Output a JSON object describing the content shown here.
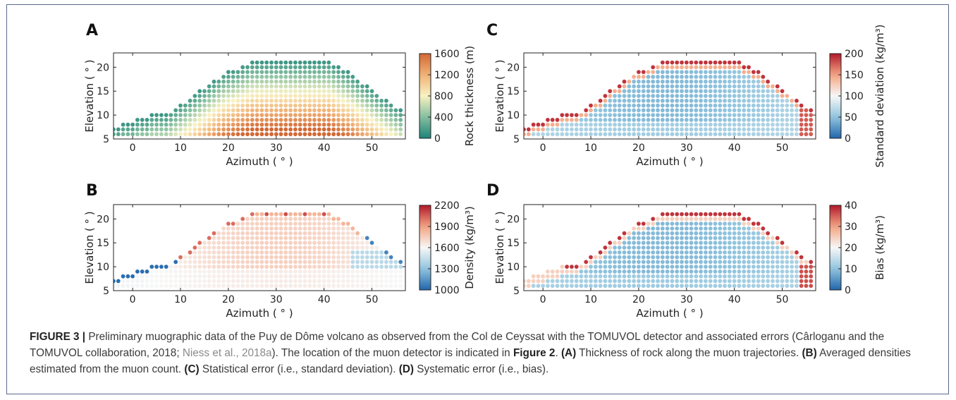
{
  "panels": [
    {
      "letter": "A",
      "xlabel": "Azimuth ( ° )",
      "ylabel": "Elevation ( ° )",
      "xticks": [
        0,
        10,
        20,
        30,
        40,
        50
      ],
      "yticks": [
        5,
        10,
        15,
        20
      ],
      "colorbar": {
        "label": "Rock thickness (m)",
        "ticks": [
          "1600",
          "1200",
          "800",
          "400",
          "0"
        ],
        "colormap": "diverging-green-orange"
      }
    },
    {
      "letter": "C",
      "xlabel": "Azimuth ( ° )",
      "ylabel": "Elevation ( ° )",
      "xticks": [
        0,
        10,
        20,
        30,
        40,
        50
      ],
      "yticks": [
        5,
        10,
        15,
        20
      ],
      "colorbar": {
        "label": "Standard deviation (kg/m³)",
        "ticks": [
          "200",
          "150",
          "100",
          "50",
          "0"
        ],
        "colormap": "RdBu-reversed"
      }
    },
    {
      "letter": "B",
      "xlabel": "Azimuth ( ° )",
      "ylabel": "Elevation ( ° )",
      "xticks": [
        0,
        10,
        20,
        30,
        40,
        50
      ],
      "yticks": [
        5,
        10,
        15,
        20
      ],
      "colorbar": {
        "label": "Density (kg/m³)",
        "ticks": [
          "2200",
          "1900",
          "1600",
          "1300",
          "1000"
        ],
        "colormap": "RdBu-reversed"
      }
    },
    {
      "letter": "D",
      "xlabel": "Azimuth ( ° )",
      "ylabel": "Elevation ( ° )",
      "xticks": [
        0,
        10,
        20,
        30,
        40,
        50
      ],
      "yticks": [
        5,
        10,
        15,
        20
      ],
      "colorbar": {
        "label": "Bias (kg/m³)",
        "ticks": [
          "40",
          "30",
          "20",
          "10",
          "0"
        ],
        "colormap": "RdBu-reversed"
      }
    }
  ],
  "caption": {
    "label": "FIGURE 3 |",
    "text_1": " Preliminary muographic data of the Puy de Dôme volcano as observed from the Col de Ceyssat with the TOMUVOL detector and associated errors (Cârloganu and the TOMUVOL collaboration, 2018; ",
    "citation": "Niess et al., 2018a",
    "text_2": "). The location of the muon detector is indicated in ",
    "figure_ref": "Figure 2",
    "text_3": ". ",
    "a_label": "(A)",
    "a_text": " Thickness of rock along the muon trajectories. ",
    "b_label": "(B)",
    "b_text": " Averaged densities estimated from the muon count. ",
    "c_label": "(C)",
    "c_text": " Statistical error (i.e., standard deviation). ",
    "d_label": "(D)",
    "d_text": " Systematic error (i.e., bias)."
  },
  "chart_data": [
    {
      "panel": "A",
      "type": "scatter",
      "xlim": [
        -4,
        57
      ],
      "ylim": [
        5,
        23
      ],
      "colorbar_range": [
        0,
        1600
      ]
    },
    {
      "panel": "C",
      "type": "scatter",
      "xlim": [
        -4,
        57
      ],
      "ylim": [
        5,
        23
      ],
      "colorbar_range": [
        0,
        200
      ]
    },
    {
      "panel": "B",
      "type": "scatter",
      "xlim": [
        -4,
        57
      ],
      "ylim": [
        5,
        23
      ],
      "colorbar_range": [
        1000,
        2200
      ]
    },
    {
      "panel": "D",
      "type": "scatter",
      "xlim": [
        -4,
        57
      ],
      "ylim": [
        5,
        23
      ],
      "colorbar_range": [
        0,
        40
      ]
    }
  ]
}
